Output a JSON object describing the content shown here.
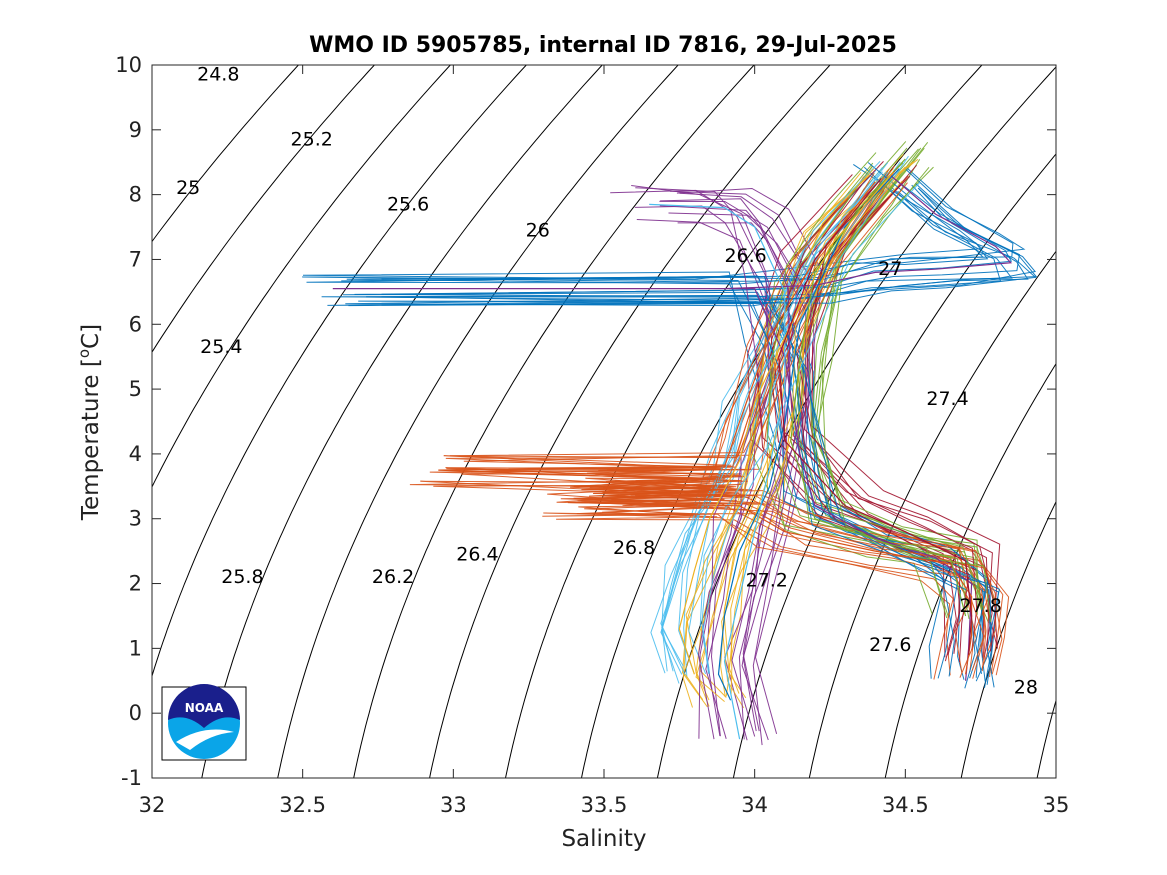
{
  "chart_data": {
    "type": "line",
    "title": "WMO ID 5905785, internal ID 7816, 29-Jul-2025",
    "xlabel": "Salinity",
    "ylabel_parts": {
      "main": "Temperature [",
      "sup": "o",
      "tail": "C]"
    },
    "xlim": [
      32,
      35
    ],
    "ylim": [
      -1,
      10
    ],
    "xticks": [
      32,
      32.5,
      33,
      33.5,
      34,
      34.5,
      35
    ],
    "yticks": [
      -1,
      0,
      1,
      2,
      3,
      4,
      5,
      6,
      7,
      8,
      9,
      10
    ],
    "xtick_labels": [
      "32",
      "32.5",
      "33",
      "33.5",
      "34",
      "34.5",
      "35"
    ],
    "ytick_labels": [
      "-1",
      "0",
      "1",
      "2",
      "3",
      "4",
      "5",
      "6",
      "7",
      "8",
      "9",
      "10"
    ],
    "grid": false,
    "density_contours": {
      "levels": [
        24.8,
        25.0,
        25.2,
        25.4,
        25.6,
        25.8,
        26.0,
        26.2,
        26.4,
        26.6,
        26.8,
        27.0,
        27.2,
        27.4,
        27.6,
        27.8,
        28.0
      ],
      "labels": [
        {
          "text": "24.8",
          "s": 32.22,
          "t": 9.85
        },
        {
          "text": "25",
          "s": 32.12,
          "t": 8.1
        },
        {
          "text": "25.2",
          "s": 32.53,
          "t": 8.85
        },
        {
          "text": "25.4",
          "s": 32.23,
          "t": 5.65
        },
        {
          "text": "25.6",
          "s": 32.85,
          "t": 7.85
        },
        {
          "text": "25.8",
          "s": 32.3,
          "t": 2.1
        },
        {
          "text": "26",
          "s": 33.28,
          "t": 7.45
        },
        {
          "text": "26.2",
          "s": 32.8,
          "t": 2.1
        },
        {
          "text": "26.4",
          "s": 33.08,
          "t": 2.45
        },
        {
          "text": "26.6",
          "s": 33.97,
          "t": 7.05
        },
        {
          "text": "26.8",
          "s": 33.6,
          "t": 2.55
        },
        {
          "text": "27",
          "s": 34.45,
          "t": 6.85
        },
        {
          "text": "27.2",
          "s": 34.04,
          "t": 2.05
        },
        {
          "text": "27.4",
          "s": 34.64,
          "t": 4.85
        },
        {
          "text": "27.6",
          "s": 34.45,
          "t": 1.05
        },
        {
          "text": "27.8",
          "s": 34.75,
          "t": 1.65
        },
        {
          "text": "28",
          "s": 34.9,
          "t": 0.4
        }
      ]
    },
    "series_description": "Argo profile T-S traces (many profiles, multicolored)",
    "series_colors": [
      "#0072BD",
      "#D95319",
      "#EDB120",
      "#7E2F8E",
      "#77AC30",
      "#4DBEEE",
      "#A2142F"
    ],
    "profiles": [
      {
        "color": "#7E2F8E",
        "points": [
          [
            34.45,
            8.3
          ],
          [
            34.6,
            7.7
          ],
          [
            34.8,
            7.2
          ],
          [
            34.85,
            6.95
          ],
          [
            34.6,
            6.85
          ],
          [
            34.4,
            6.8
          ],
          [
            34.2,
            6.6
          ],
          [
            33.9,
            6.55
          ],
          [
            32.6,
            6.55
          ],
          [
            34.0,
            6.55
          ],
          [
            34.1,
            5.5
          ],
          [
            34.15,
            4.0
          ],
          [
            34.2,
            3.2
          ],
          [
            34.4,
            2.7
          ],
          [
            34.6,
            2.4
          ],
          [
            34.72,
            2.0
          ],
          [
            34.71,
            1.0
          ],
          [
            34.7,
            0.5
          ]
        ]
      },
      {
        "color": "#D95319",
        "points": [
          [
            34.4,
            8.2
          ],
          [
            34.2,
            7.0
          ],
          [
            34.05,
            5.8
          ],
          [
            33.95,
            4.5
          ],
          [
            33.9,
            3.8
          ],
          [
            32.95,
            3.75
          ],
          [
            33.85,
            3.6
          ],
          [
            33.4,
            3.5
          ],
          [
            33.9,
            3.45
          ],
          [
            33.5,
            3.35
          ],
          [
            33.9,
            3.3
          ],
          [
            33.38,
            3.25
          ],
          [
            33.95,
            3.2
          ],
          [
            34.1,
            2.8
          ],
          [
            34.4,
            2.5
          ],
          [
            34.65,
            2.3
          ],
          [
            34.72,
            1.8
          ],
          [
            34.72,
            1.2
          ],
          [
            34.7,
            0.6
          ]
        ]
      },
      {
        "color": "#0072BD",
        "points": [
          [
            34.48,
            8.4
          ],
          [
            34.3,
            7.5
          ],
          [
            34.15,
            6.0
          ],
          [
            34.1,
            4.5
          ],
          [
            34.05,
            3.5
          ],
          [
            33.95,
            2.5
          ],
          [
            33.9,
            1.5
          ],
          [
            33.88,
            0.6
          ],
          [
            33.92,
            0.2
          ]
        ]
      },
      {
        "color": "#4DBEEE",
        "points": [
          [
            33.65,
            7.85
          ],
          [
            33.9,
            7.8
          ],
          [
            34.0,
            7.5
          ],
          [
            34.1,
            6.5
          ],
          [
            34.1,
            5.0
          ],
          [
            34.05,
            3.8
          ],
          [
            34.0,
            2.8
          ],
          [
            33.95,
            1.8
          ],
          [
            33.9,
            0.8
          ],
          [
            33.95,
            -0.4
          ]
        ]
      },
      {
        "color": "#77AC30",
        "points": [
          [
            34.5,
            8.55
          ],
          [
            34.35,
            7.8
          ],
          [
            34.2,
            6.8
          ],
          [
            34.15,
            5.5
          ],
          [
            34.12,
            4.2
          ],
          [
            34.2,
            3.0
          ],
          [
            34.45,
            2.6
          ],
          [
            34.65,
            2.4
          ],
          [
            34.7,
            1.5
          ]
        ]
      },
      {
        "color": "#EDB120",
        "points": [
          [
            34.46,
            8.35
          ],
          [
            34.25,
            7.2
          ],
          [
            34.1,
            5.8
          ],
          [
            34.0,
            4.8
          ],
          [
            33.95,
            3.9
          ],
          [
            33.85,
            3.0
          ],
          [
            33.8,
            2.2
          ],
          [
            33.75,
            1.3
          ],
          [
            33.8,
            0.6
          ]
        ]
      },
      {
        "color": "#A2142F",
        "points": [
          [
            34.42,
            8.25
          ],
          [
            34.2,
            7.0
          ],
          [
            34.08,
            5.5
          ],
          [
            34.1,
            4.2
          ],
          [
            34.3,
            3.2
          ],
          [
            34.5,
            2.8
          ],
          [
            34.7,
            2.35
          ],
          [
            34.72,
            1.5
          ],
          [
            34.71,
            0.9
          ]
        ]
      }
    ]
  },
  "logo": {
    "text": "NOAA",
    "colors": {
      "navy": "#1a1f8c",
      "cyan": "#0aa5e8"
    }
  }
}
